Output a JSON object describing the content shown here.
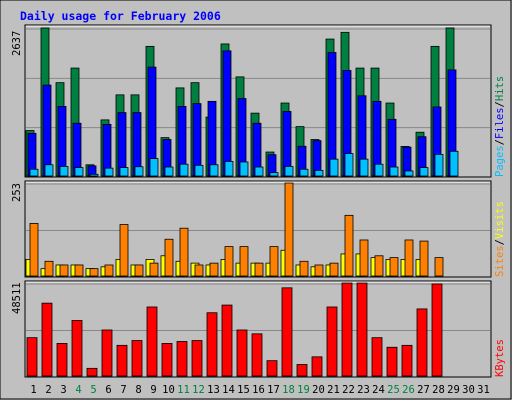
{
  "chart_data": [
    {
      "type": "bar",
      "title": "Daily usage for February 2006",
      "ymax_label": "2637",
      "ylim": [
        0,
        2637
      ],
      "x": [
        "1",
        "2",
        "3",
        "4",
        "5",
        "6",
        "7",
        "8",
        "9",
        "10",
        "11",
        "12",
        "13",
        "14",
        "15",
        "16",
        "17",
        "18",
        "19",
        "20",
        "21",
        "22",
        "23",
        "24",
        "25",
        "26",
        "27",
        "28",
        "29",
        "30",
        "31"
      ],
      "weekend_days": [
        "4",
        "5",
        "11",
        "12",
        "18",
        "19",
        "25",
        "26"
      ],
      "legend": {
        "placement": "right",
        "separator": "/",
        "series_order": [
          "Pages",
          "Files",
          "Hits"
        ]
      },
      "series": [
        {
          "name": "Hits",
          "color": "#008040",
          "values": [
            810,
            2637,
            1663,
            1923,
            200,
            1000,
            1446,
            1446,
            2310,
            684,
            1570,
            1663,
            1049,
            2353,
            1766,
            1120,
            427,
            1300,
            880,
            650,
            2440,
            2560,
            1923,
            1923,
            1300,
            527,
            780,
            2310,
            2637,
            0,
            0
          ]
        },
        {
          "name": "Files",
          "color": "#0000ff",
          "values": [
            760,
            1620,
            1240,
            940,
            180,
            920,
            1130,
            1130,
            1940,
            650,
            1240,
            1290,
            1330,
            2230,
            1380,
            940,
            380,
            1150,
            530,
            630,
            2200,
            1880,
            1430,
            1330,
            1010,
            515,
            700,
            1230,
            1890,
            0,
            0
          ]
        },
        {
          "name": "Pages",
          "color": "#00c0ff",
          "values": [
            120,
            200,
            170,
            150,
            30,
            140,
            150,
            165,
            310,
            160,
            210,
            190,
            200,
            260,
            250,
            160,
            60,
            170,
            120,
            100,
            300,
            400,
            300,
            210,
            160,
            90,
            150,
            385,
            440,
            0,
            0
          ]
        }
      ]
    },
    {
      "type": "bar",
      "ymax_label": "253",
      "ylim": [
        0,
        253
      ],
      "legend": {
        "placement": "right",
        "separator": "/",
        "series_order": [
          "Sites",
          "Visits"
        ]
      },
      "series": [
        {
          "name": "Visits",
          "color": "#ffff00",
          "values": [
            45,
            20,
            30,
            30,
            20,
            25,
            45,
            30,
            45,
            55,
            40,
            35,
            30,
            45,
            35,
            35,
            35,
            70,
            30,
            25,
            30,
            60,
            60,
            50,
            45,
            45,
            45,
            0,
            0,
            0,
            0
          ]
        },
        {
          "name": "Sites",
          "color": "#ff8000",
          "values": [
            143,
            40,
            30,
            30,
            20,
            30,
            140,
            30,
            35,
            100,
            130,
            30,
            35,
            80,
            80,
            35,
            80,
            253,
            40,
            30,
            35,
            165,
            98,
            55,
            50,
            98,
            95,
            50,
            0,
            0,
            0
          ]
        }
      ]
    },
    {
      "type": "bar",
      "ymax_label": "48511",
      "ylim": [
        0,
        48511
      ],
      "legend": {
        "placement": "right"
      },
      "series": [
        {
          "name": "KBytes",
          "color": "#ff0000",
          "values": [
            20000,
            38000,
            17000,
            29000,
            4000,
            24000,
            16000,
            18500,
            36000,
            17000,
            18000,
            18500,
            33000,
            37000,
            24000,
            22000,
            8000,
            46000,
            6000,
            10000,
            36000,
            48511,
            48511,
            20000,
            15000,
            16000,
            35000,
            48000,
            0,
            0,
            0
          ]
        }
      ]
    }
  ]
}
